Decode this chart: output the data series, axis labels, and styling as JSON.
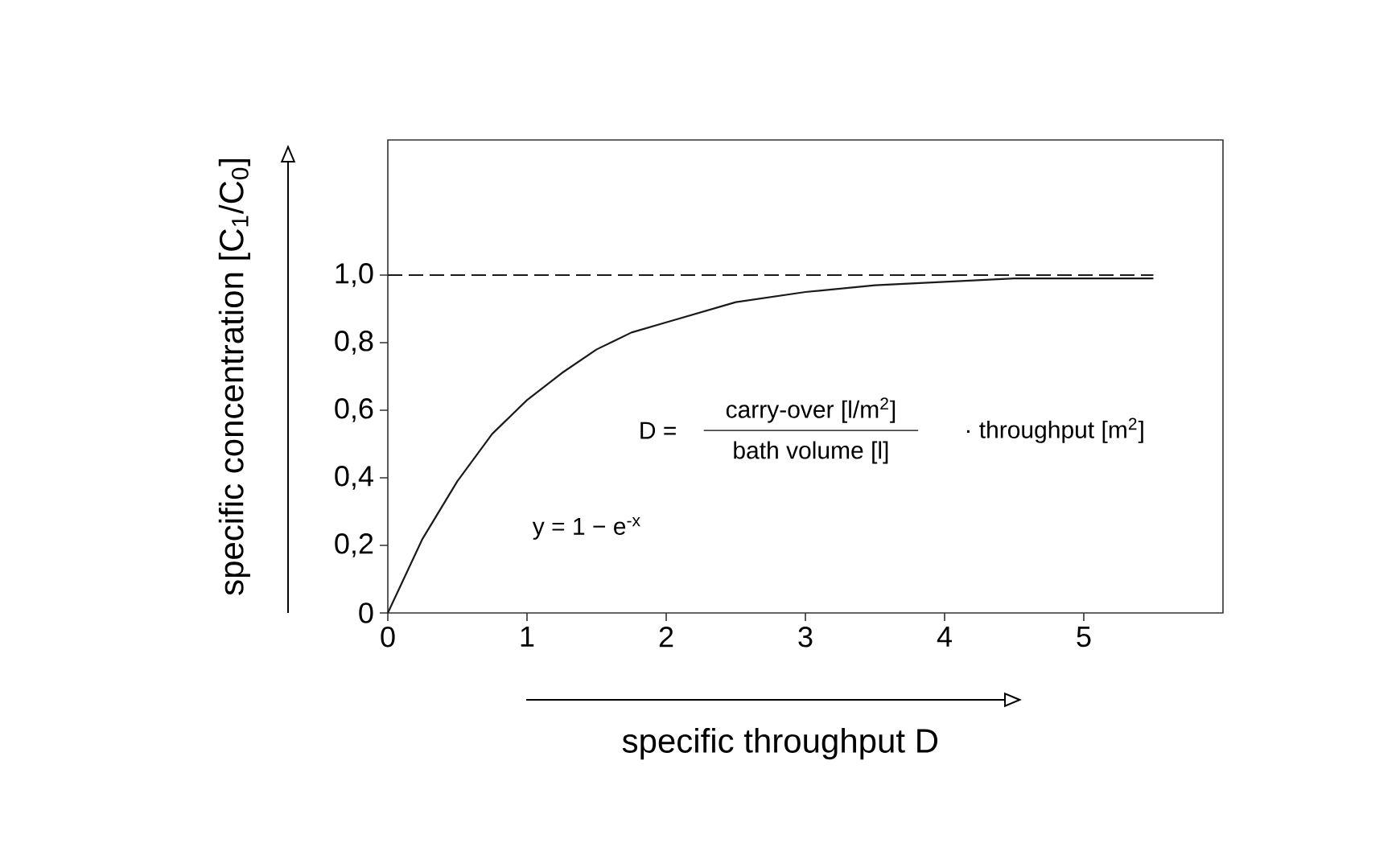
{
  "chart_data": {
    "type": "line",
    "xlabel": "specific throughput   D",
    "ylabel": "specific concentration [C$_{1}$/C$_{0}$]",
    "xlim": [
      0,
      6
    ],
    "ylim": [
      0,
      1.4
    ],
    "xticks": [
      0,
      1,
      2,
      3,
      4,
      5
    ],
    "yticks": [
      0,
      {
        "value": 0.2,
        "label": "0,2"
      },
      {
        "value": 0.4,
        "label": "0,4"
      },
      {
        "value": 0.6,
        "label": "0,6"
      },
      {
        "value": 0.8,
        "label": "0,8"
      },
      {
        "value": 1.0,
        "label": "1,0"
      }
    ],
    "grid": false,
    "marker": "none",
    "series": [
      {
        "color": "#1a1a1a",
        "line_style": "solid",
        "x": [
          0,
          0.25,
          0.5,
          0.75,
          1,
          1.25,
          1.5,
          1.75,
          2,
          2.5,
          3,
          3.5,
          4,
          4.5,
          5,
          5.5
        ],
        "values": [
          0,
          0.22,
          0.39,
          0.53,
          0.63,
          0.71,
          0.78,
          0.83,
          0.86,
          0.92,
          0.95,
          0.97,
          0.98,
          0.99,
          0.99,
          0.99
        ]
      },
      {
        "color": "#1a1a1a",
        "line_style": "dashed",
        "x": [
          0,
          5.5
        ],
        "values": [
          1.0,
          1.0
        ]
      }
    ],
    "annotations": [
      "D =",
      "carry-over [l/m$^{2}$]",
      "bath volume [l]",
      "· throughput [m$^{2}$]",
      "y = 1 − e$^{-x}$"
    ]
  }
}
